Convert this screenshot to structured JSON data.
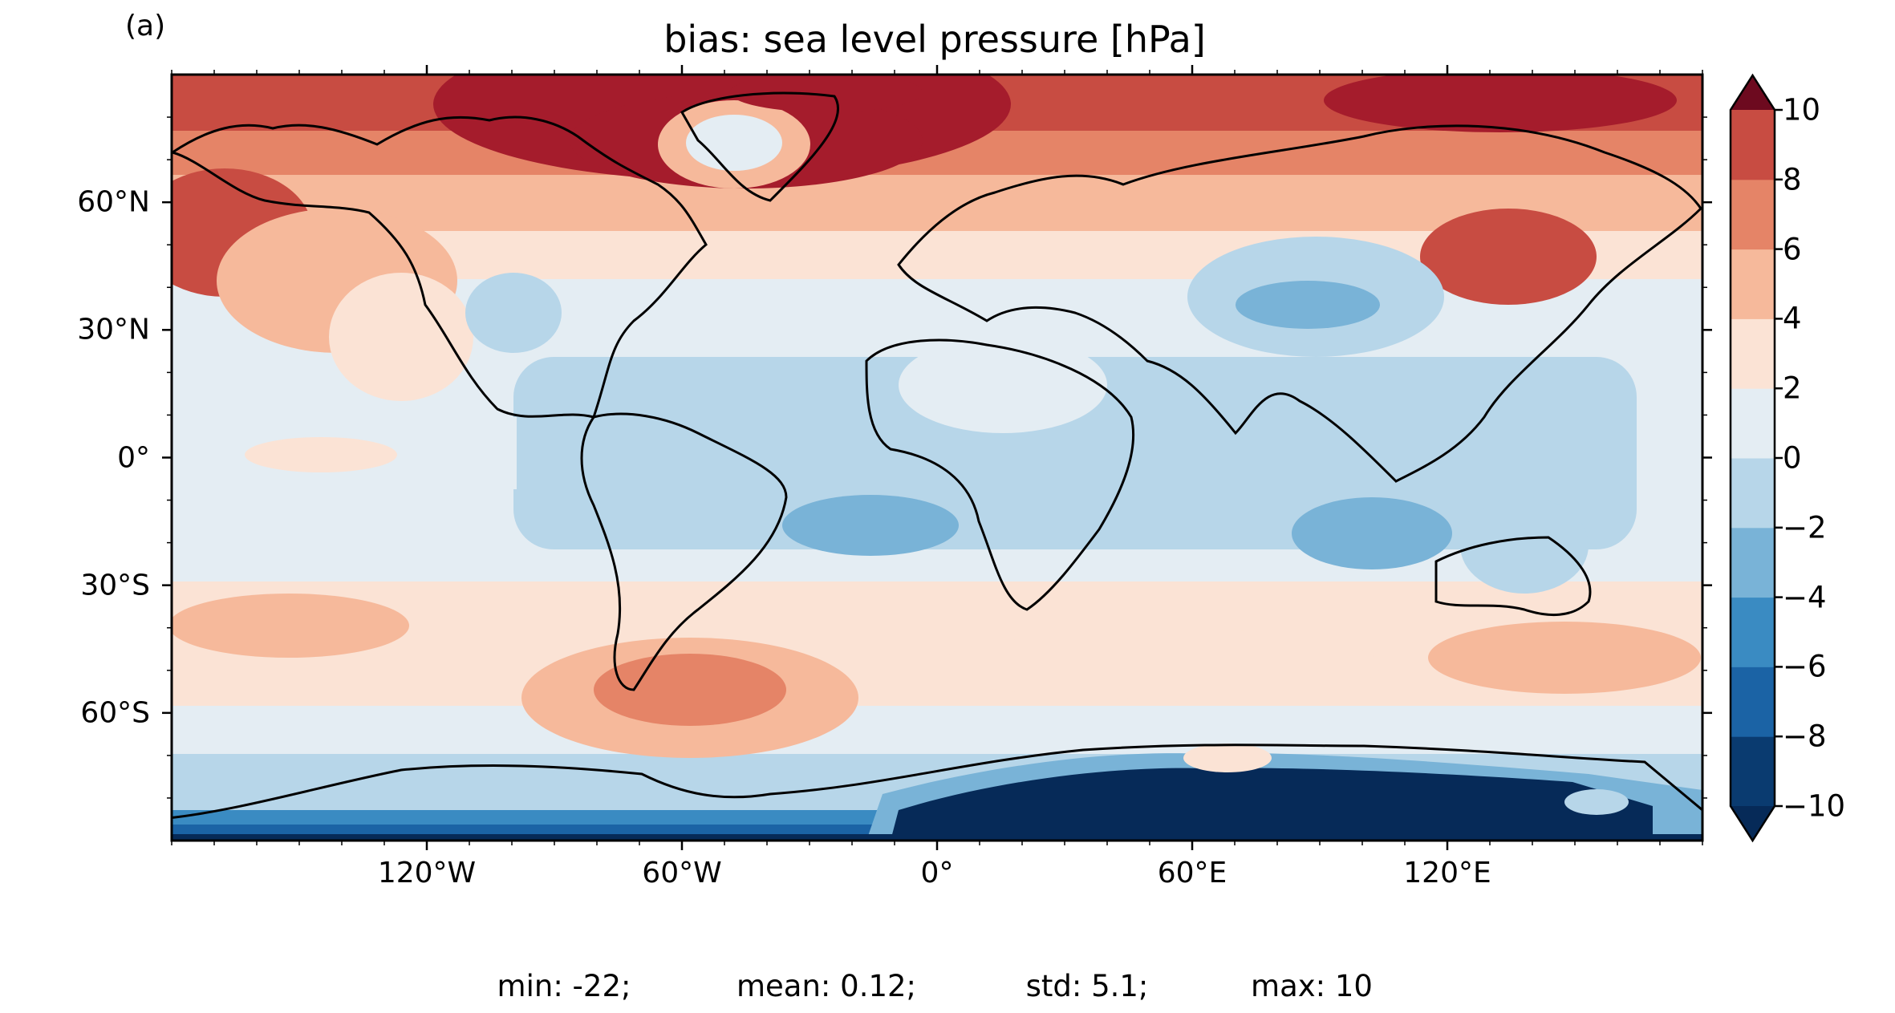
{
  "panel_label": "(a)",
  "title": "bias: sea level pressure [hPa]",
  "projection": "PlateCarree",
  "extent": {
    "lon": [
      -180,
      180
    ],
    "lat": [
      -90,
      90
    ]
  },
  "latitude_ticks": [
    {
      "value": 60,
      "label": "60°N"
    },
    {
      "value": 30,
      "label": "30°N"
    },
    {
      "value": 0,
      "label": "0°"
    },
    {
      "value": -30,
      "label": "30°S"
    },
    {
      "value": -60,
      "label": "60°S"
    }
  ],
  "longitude_ticks": [
    {
      "value": -120,
      "label": "120°W"
    },
    {
      "value": -60,
      "label": "60°W"
    },
    {
      "value": 0,
      "label": "0°"
    },
    {
      "value": 60,
      "label": "60°E"
    },
    {
      "value": 120,
      "label": "120°E"
    }
  ],
  "colorbar": {
    "levels": [
      -10,
      -8,
      -6,
      -4,
      -2,
      0,
      2,
      4,
      6,
      8,
      10
    ],
    "tick_labels": [
      "−10",
      "−8",
      "−6",
      "−4",
      "−2",
      "0",
      "2",
      "4",
      "6",
      "8",
      "10"
    ],
    "colors": [
      "#0a3b70",
      "#1b63a5",
      "#3a8bc2",
      "#79b3d7",
      "#b7d6e9",
      "#e4edf3",
      "#fbe3d5",
      "#f6b99b",
      "#e58467",
      "#c84c42",
      "#a51c2c"
    ],
    "under_color": "#062a58",
    "over_color": "#6d0a1f",
    "extend": "both"
  },
  "stats": {
    "min": "min: -22;",
    "mean": "mean: 0.12;",
    "std": "std: 5.1;",
    "max": "max: 10"
  }
}
